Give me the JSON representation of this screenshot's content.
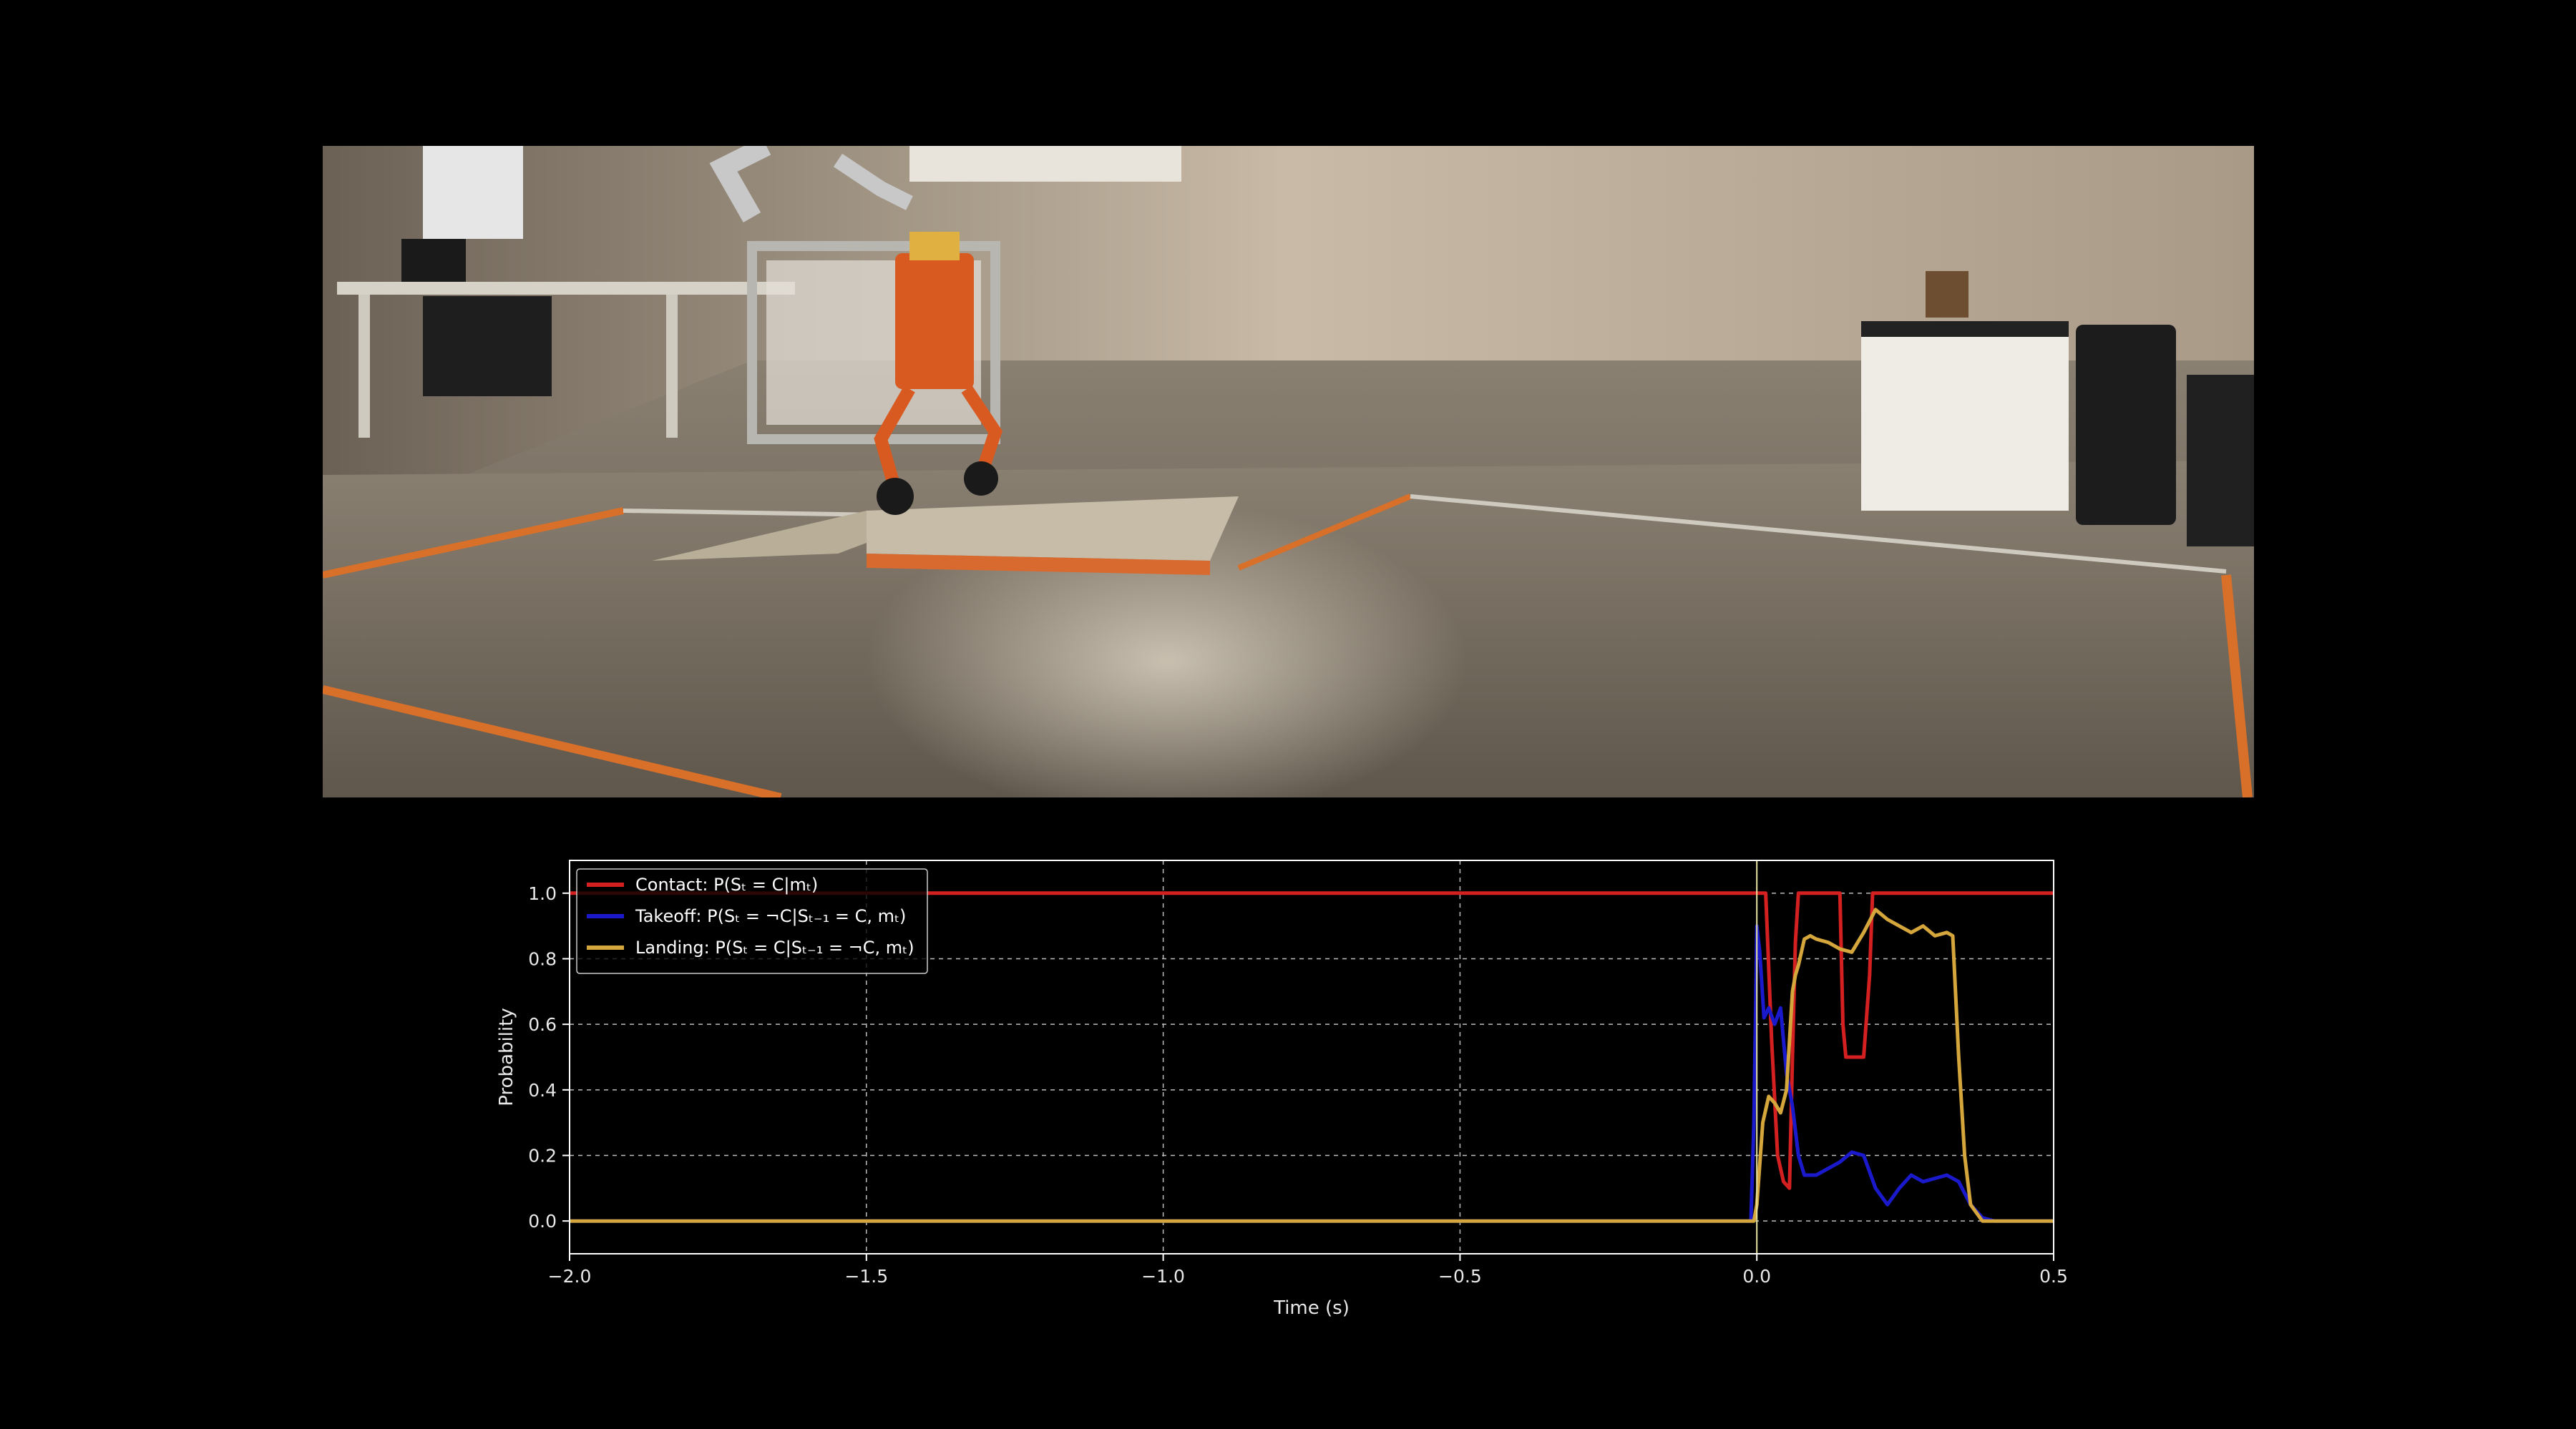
{
  "video": {
    "description_icon": "lab-scene"
  },
  "chart_data": {
    "type": "line",
    "title": "",
    "xlabel": "Time (s)",
    "ylabel": "Probability",
    "xlim": [
      -2.0,
      0.5
    ],
    "ylim": [
      -0.1,
      1.1
    ],
    "xticks": [
      -2.0,
      -1.5,
      -1.0,
      -0.5,
      0.0,
      0.5
    ],
    "xtick_labels": [
      "−2.0",
      "−1.5",
      "−1.0",
      "−0.5",
      "0.0",
      "0.5"
    ],
    "yticks": [
      0.0,
      0.2,
      0.4,
      0.6,
      0.8,
      1.0
    ],
    "ytick_labels": [
      "0.0",
      "0.2",
      "0.4",
      "0.6",
      "0.8",
      "1.0"
    ],
    "grid": true,
    "legend_position": "top-left",
    "vline_x": 0.0,
    "series": [
      {
        "name": "Contact: P(Sₜ = C|mₜ)",
        "color": "#d42020",
        "x": [
          -2.0,
          0.0,
          0.005,
          0.015,
          0.025,
          0.035,
          0.045,
          0.055,
          0.06,
          0.065,
          0.07,
          0.075,
          0.085,
          0.1,
          0.12,
          0.14,
          0.145,
          0.15,
          0.16,
          0.18,
          0.19,
          0.195,
          0.205,
          0.3,
          0.5
        ],
        "y": [
          1.0,
          1.0,
          1.0,
          1.0,
          0.55,
          0.2,
          0.12,
          0.1,
          0.5,
          0.85,
          1.0,
          1.0,
          1.0,
          1.0,
          1.0,
          1.0,
          0.6,
          0.5,
          0.5,
          0.5,
          0.75,
          1.0,
          1.0,
          1.0,
          1.0
        ]
      },
      {
        "name": "Takeoff: P(Sₜ = ¬C|Sₜ₋₁ = C, mₜ)",
        "color": "#1a1acc",
        "x": [
          -2.0,
          -0.01,
          -0.005,
          0.0,
          0.005,
          0.012,
          0.02,
          0.03,
          0.04,
          0.05,
          0.06,
          0.07,
          0.08,
          0.1,
          0.12,
          0.14,
          0.16,
          0.18,
          0.2,
          0.22,
          0.24,
          0.26,
          0.28,
          0.3,
          0.32,
          0.34,
          0.36,
          0.38,
          0.4,
          0.5
        ],
        "y": [
          0.0,
          0.0,
          0.3,
          0.9,
          0.82,
          0.62,
          0.65,
          0.6,
          0.65,
          0.45,
          0.35,
          0.2,
          0.14,
          0.14,
          0.16,
          0.18,
          0.21,
          0.2,
          0.1,
          0.05,
          0.1,
          0.14,
          0.12,
          0.13,
          0.14,
          0.12,
          0.05,
          0.01,
          0.0,
          0.0
        ]
      },
      {
        "name": "Landing: P(Sₜ = C|Sₜ₋₁ = ¬C, mₜ)",
        "color": "#d4a63c",
        "x": [
          -2.0,
          -0.005,
          0.0,
          0.01,
          0.02,
          0.03,
          0.04,
          0.05,
          0.06,
          0.065,
          0.07,
          0.08,
          0.09,
          0.1,
          0.12,
          0.14,
          0.16,
          0.18,
          0.2,
          0.22,
          0.24,
          0.26,
          0.28,
          0.3,
          0.32,
          0.33,
          0.34,
          0.35,
          0.36,
          0.38,
          0.5
        ],
        "y": [
          0.0,
          0.0,
          0.05,
          0.3,
          0.38,
          0.36,
          0.33,
          0.4,
          0.7,
          0.75,
          0.78,
          0.86,
          0.87,
          0.86,
          0.85,
          0.83,
          0.82,
          0.88,
          0.95,
          0.92,
          0.9,
          0.88,
          0.9,
          0.87,
          0.88,
          0.87,
          0.5,
          0.2,
          0.05,
          0.0,
          0.0
        ]
      }
    ]
  }
}
